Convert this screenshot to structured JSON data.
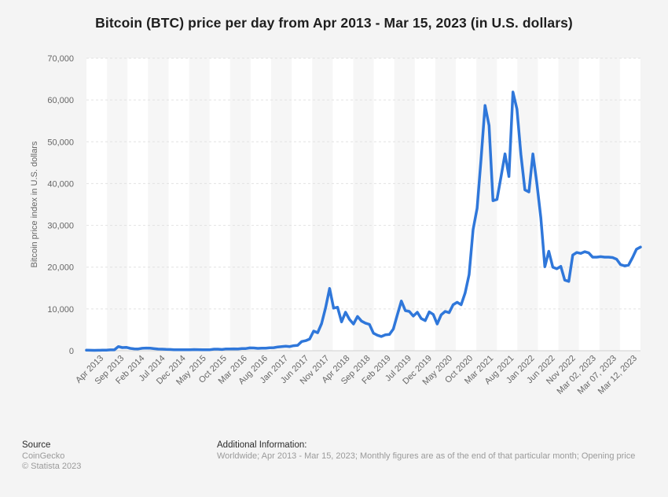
{
  "chart_data": {
    "type": "line",
    "title": "Bitcoin (BTC) price per day from Apr 2013 - Mar 15, 2023 (in U.S. dollars)",
    "xlabel": "",
    "ylabel": "Bitcoin price index in U.S. dollars",
    "ylim": [
      0,
      70000
    ],
    "yticks": [
      0,
      10000,
      20000,
      30000,
      40000,
      50000,
      60000,
      70000
    ],
    "ytick_labels": [
      "0",
      "10,000",
      "20,000",
      "30,000",
      "40,000",
      "50,000",
      "60,000",
      "70,000"
    ],
    "xtick_labels": [
      "Apr 2013",
      "Sep 2013",
      "Feb 2014",
      "Jul 2014",
      "Dec 2014",
      "May 2015",
      "Oct 2015",
      "Mar 2016",
      "Aug 2016",
      "Jan 2017",
      "Jun 2017",
      "Nov 2017",
      "Apr 2018",
      "Sep 2018",
      "Feb 2019",
      "Jul 2019",
      "Dec 2019",
      "May 2020",
      "Oct 2020",
      "Mar 2021",
      "Aug 2021",
      "Jan 2022",
      "Jun 2022",
      "Nov 2022",
      "Mar 02, 2023",
      "Mar 07, 2023",
      "Mar 12, 2023"
    ],
    "grid": true,
    "legend": "none",
    "series": [
      {
        "name": "Bitcoin price",
        "color": "#2f77da",
        "values": [
          135,
          115,
          95,
          105,
          135,
          140,
          200,
          210,
          1000,
          750,
          800,
          570,
          450,
          440,
          580,
          640,
          600,
          480,
          390,
          380,
          320,
          300,
          230,
          220,
          240,
          240,
          250,
          280,
          270,
          230,
          250,
          250,
          380,
          380,
          310,
          430,
          420,
          450,
          420,
          520,
          530,
          670,
          650,
          570,
          600,
          610,
          700,
          740,
          900,
          1000,
          1100,
          1000,
          1200,
          1300,
          2200,
          2400,
          2800,
          4700,
          4300,
          6500,
          10300,
          14900,
          10200,
          10400,
          6900,
          9200,
          7500,
          6400,
          8200,
          7100,
          6600,
          6300,
          4200,
          3700,
          3400,
          3800,
          3900,
          5200,
          8600,
          11900,
          9600,
          9400,
          8300,
          9200,
          7700,
          7200,
          9300,
          8700,
          6400,
          8600,
          9400,
          9100,
          11000,
          11600,
          11000,
          13800,
          18200,
          29000,
          34100,
          45800,
          58700,
          53900,
          35900,
          36200,
          41600,
          47100,
          41700,
          61900,
          57800,
          47000,
          38500,
          38000,
          47100,
          40100,
          31800,
          20100,
          23800,
          20000,
          19600,
          20200,
          16900,
          16600,
          22900,
          23500,
          23300,
          23700,
          23400,
          22400,
          22400,
          22500,
          22400,
          22400,
          22300,
          21900,
          20600,
          20300,
          20500,
          22300,
          24300,
          24800
        ]
      }
    ]
  },
  "footer": {
    "source_heading": "Source",
    "source_name": "CoinGecko",
    "copyright": "© Statista 2023",
    "info_heading": "Additional Information:",
    "info_text": "Worldwide; Apr 2013 - Mar 15, 2023; Monthly figures are as of the end of that particular month; Opening price"
  }
}
